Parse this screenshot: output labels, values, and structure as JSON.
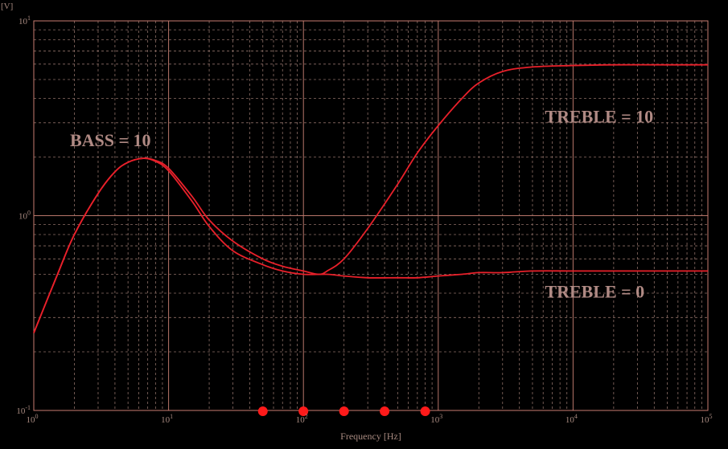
{
  "chart_data": {
    "type": "line",
    "title": "",
    "xlabel": "Frequency [Hz]",
    "ylabel": "[V]",
    "x_scale": "log",
    "y_scale": "log",
    "xlim": [
      1,
      100000
    ],
    "ylim": [
      0.1,
      10
    ],
    "grid": true,
    "x_ticks": [
      {
        "base": "10",
        "exp": "0"
      },
      {
        "base": "10",
        "exp": "1"
      },
      {
        "base": "10",
        "exp": "2"
      },
      {
        "base": "10",
        "exp": "3"
      },
      {
        "base": "10",
        "exp": "4"
      },
      {
        "base": "10",
        "exp": "5"
      }
    ],
    "y_ticks": [
      {
        "base": "10",
        "exp": "-1"
      },
      {
        "base": "10",
        "exp": "0"
      },
      {
        "base": "10",
        "exp": "1"
      }
    ],
    "series": [
      {
        "color": "#e8202a",
        "x": [
          1,
          1.5,
          2,
          3,
          4,
          5,
          6.5,
          8,
          10,
          15,
          20,
          30,
          50,
          70,
          100,
          150,
          200,
          300,
          500,
          700,
          1000,
          1500,
          2000,
          3000,
          5000,
          10000,
          20000,
          50000,
          100000
        ],
        "values": [
          0.25,
          0.5,
          0.8,
          1.3,
          1.68,
          1.88,
          1.97,
          1.9,
          1.7,
          1.18,
          0.88,
          0.66,
          0.56,
          0.52,
          0.5,
          0.5,
          0.49,
          0.48,
          0.48,
          0.48,
          0.49,
          0.5,
          0.51,
          0.51,
          0.52,
          0.52,
          0.52,
          0.52,
          0.52
        ]
      },
      {
        "color": "#e8202a",
        "x": [
          1,
          1.5,
          2,
          3,
          4,
          5,
          6.5,
          8,
          10,
          15,
          20,
          30,
          50,
          70,
          100,
          130,
          150,
          200,
          300,
          500,
          700,
          1000,
          1500,
          2000,
          3000,
          5000,
          10000,
          20000,
          50000,
          100000
        ],
        "values": [
          0.25,
          0.5,
          0.8,
          1.3,
          1.68,
          1.88,
          1.97,
          1.92,
          1.75,
          1.25,
          0.95,
          0.74,
          0.6,
          0.55,
          0.52,
          0.5,
          0.52,
          0.6,
          0.86,
          1.45,
          2.1,
          2.9,
          4.0,
          4.8,
          5.5,
          5.8,
          5.9,
          5.95,
          5.95,
          5.95
        ]
      }
    ],
    "markers": {
      "color": "#ff1a1a",
      "x": [
        50,
        100,
        200,
        400,
        800
      ]
    },
    "annotations": [
      {
        "text": "BASS = 10",
        "x": 3,
        "y": 2.45
      },
      {
        "text": "TREBLE = 10",
        "x": 10000,
        "y": 3.25
      },
      {
        "text": "TREBLE = 0",
        "x": 10000,
        "y": 0.41
      }
    ]
  }
}
